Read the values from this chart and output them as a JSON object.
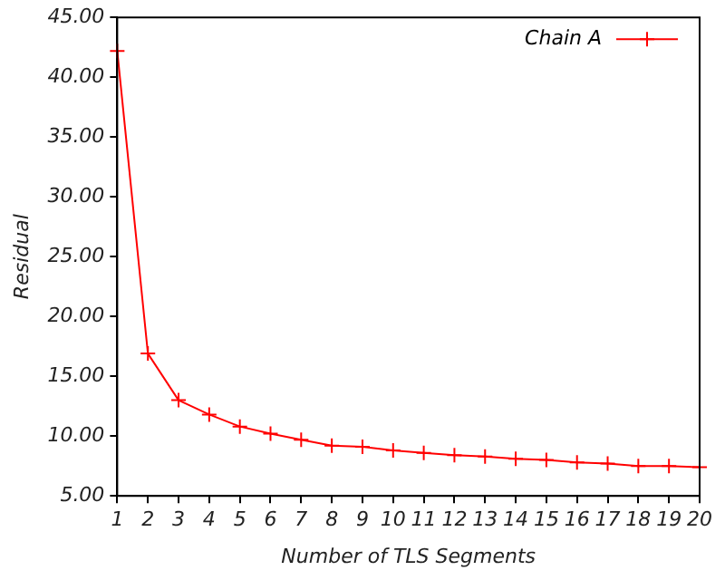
{
  "chart_data": {
    "type": "line",
    "xlabel": "Number of TLS Segments",
    "ylabel": "Residual",
    "x": [
      1,
      2,
      3,
      4,
      5,
      6,
      7,
      8,
      9,
      10,
      11,
      12,
      13,
      14,
      15,
      16,
      17,
      18,
      19,
      20
    ],
    "series": [
      {
        "name": "Chain A",
        "color": "#ff0000",
        "values": [
          42.2,
          16.9,
          13.0,
          11.8,
          10.8,
          10.2,
          9.7,
          9.2,
          9.1,
          8.8,
          8.6,
          8.4,
          8.3,
          8.1,
          8.0,
          7.8,
          7.7,
          7.5,
          7.5,
          7.4
        ]
      }
    ],
    "xlim": [
      1,
      20
    ],
    "xticks": [
      1,
      2,
      3,
      4,
      5,
      6,
      7,
      8,
      9,
      10,
      11,
      12,
      13,
      14,
      15,
      16,
      17,
      18,
      19,
      20
    ],
    "ylim": [
      5,
      45
    ],
    "yticks": [
      {
        "value": 5,
        "label": "5.00"
      },
      {
        "value": 10,
        "label": "10.00"
      },
      {
        "value": 15,
        "label": "15.00"
      },
      {
        "value": 20,
        "label": "20.00"
      },
      {
        "value": 25,
        "label": "25.00"
      },
      {
        "value": 30,
        "label": "30.00"
      },
      {
        "value": 35,
        "label": "35.00"
      },
      {
        "value": 40,
        "label": "40.00"
      },
      {
        "value": 45,
        "label": "45.00"
      }
    ],
    "grid": false,
    "legend": "top right",
    "marker": "cross",
    "line_style": "solid"
  }
}
